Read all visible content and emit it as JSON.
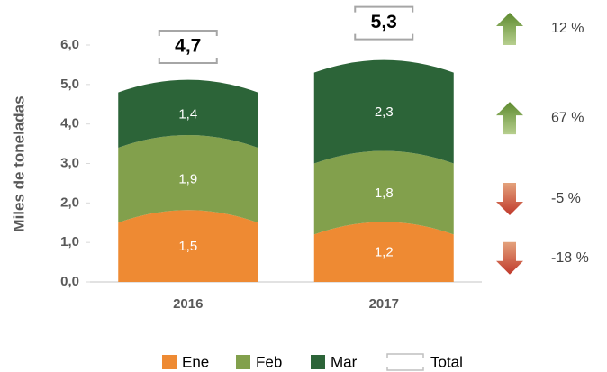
{
  "chart_data": {
    "type": "stacked-bar",
    "y_axis_label": "Miles de toneladas",
    "categories": [
      "2016",
      "2017"
    ],
    "series": [
      {
        "name": "Ene",
        "color": "#ee8a33",
        "values": [
          1.5,
          1.2
        ],
        "value_labels": [
          "1,5",
          "1,2"
        ]
      },
      {
        "name": "Feb",
        "color": "#82a04c",
        "values": [
          1.9,
          1.8
        ],
        "value_labels": [
          "1,9",
          "1,8"
        ]
      },
      {
        "name": "Mar",
        "color": "#2c6438",
        "values": [
          1.4,
          2.3
        ],
        "value_labels": [
          "1,4",
          "2,3"
        ]
      }
    ],
    "totals": {
      "name": "Total",
      "values": [
        4.7,
        5.3
      ],
      "value_labels": [
        "4,7",
        "5,3"
      ]
    },
    "changes": [
      {
        "value": -18,
        "label": "-18 %"
      },
      {
        "value": -5,
        "label": "-5 %"
      },
      {
        "value": 67,
        "label": "67 %"
      },
      {
        "value": 12,
        "label": "12 %"
      }
    ],
    "ylim": [
      0,
      6
    ],
    "yticks": [
      {
        "value": 0,
        "label": "0,0"
      },
      {
        "value": 1,
        "label": "1,0"
      },
      {
        "value": 2,
        "label": "2,0"
      },
      {
        "value": 3,
        "label": "3,0"
      },
      {
        "value": 4,
        "label": "4,0"
      },
      {
        "value": 5,
        "label": "5,0"
      },
      {
        "value": 6,
        "label": "6,0"
      }
    ],
    "legend": "bottom"
  }
}
